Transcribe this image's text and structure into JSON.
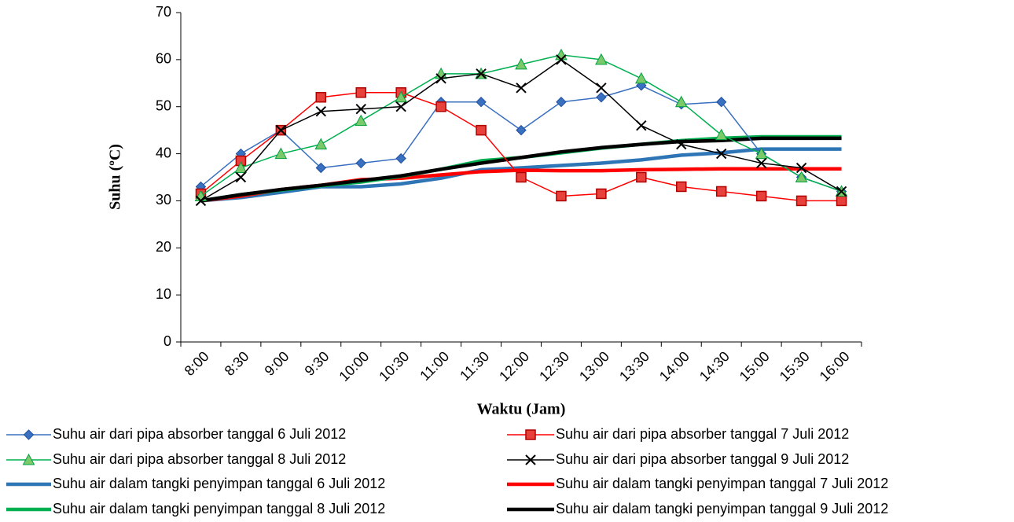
{
  "chart_data": {
    "type": "line",
    "x_label": "Waktu (Jam)",
    "y_label": "Suhu (ºC)",
    "categories": [
      "8:00",
      "8:30",
      "9:00",
      "9:30",
      "10:00",
      "10:30",
      "11:00",
      "11:30",
      "12:00",
      "12:30",
      "13:00",
      "13:30",
      "14:00",
      "14:30",
      "15:00",
      "15:30",
      "16:00"
    ],
    "ylim": [
      0,
      70
    ],
    "yticks": [
      0,
      10,
      20,
      30,
      40,
      50,
      60,
      70
    ],
    "series": [
      {
        "name": "Suhu air dari pipa absorber tanggal 6 Juli 2012",
        "color": "#3a70c0",
        "marker": "diamond",
        "width": 1.5,
        "values": [
          33,
          40,
          45,
          37,
          38,
          39,
          51,
          51,
          45,
          51,
          52,
          54.5,
          50.5,
          51,
          40,
          35,
          32
        ]
      },
      {
        "name": "Suhu air dari pipa absorber tanggal 7 Juli 2012",
        "color": "#ff0000",
        "marker": "square",
        "width": 1.5,
        "values": [
          31.5,
          38.5,
          45,
          52,
          53,
          53,
          50,
          45,
          35,
          31,
          31.5,
          35,
          33,
          32,
          31,
          30,
          30
        ]
      },
      {
        "name": "Suhu air dari pipa absorber tanggal 8 Juli 2012",
        "color": "#00b050",
        "marker": "triangle",
        "width": 1.5,
        "values": [
          31,
          37,
          40,
          42,
          47,
          52,
          57,
          57,
          59,
          61,
          60,
          56,
          51,
          44,
          40,
          35,
          32
        ]
      },
      {
        "name": "Suhu air dari pipa absorber tanggal 9 Juli 2012",
        "color": "#000000",
        "marker": "x",
        "width": 1.5,
        "values": [
          30,
          35,
          45,
          49,
          49.5,
          50,
          56,
          57,
          54,
          60,
          54,
          46,
          42,
          40,
          38,
          37,
          32
        ]
      },
      {
        "name": "Suhu air dalam tangki penyimpan tanggal 6 Juli 2012",
        "color": "#2e75b6",
        "marker": "none",
        "width": 4.5,
        "values": [
          30,
          30.7,
          31.8,
          33,
          33,
          33.6,
          34.8,
          36.6,
          37,
          37.5,
          38,
          38.7,
          39.7,
          40.2,
          41,
          41,
          41
        ]
      },
      {
        "name": "Suhu air dalam tangki penyimpan tanggal 7 Juli 2012",
        "color": "#ff0000",
        "marker": "none",
        "width": 4.5,
        "values": [
          30,
          31,
          32.4,
          33.3,
          34.5,
          34.8,
          35.5,
          36.2,
          36.5,
          36.4,
          36.4,
          36.6,
          36.7,
          36.8,
          36.8,
          36.8,
          36.8
        ]
      },
      {
        "name": "Suhu air dalam tangki penyimpan tanggal 8 Juli 2012",
        "color": "#00b050",
        "marker": "none",
        "width": 4.5,
        "values": [
          30,
          31.3,
          32.3,
          33.2,
          34,
          35.2,
          36.7,
          38.5,
          39.2,
          40.2,
          41.2,
          42,
          42.8,
          43.3,
          43.6,
          43.6,
          43.6
        ]
      },
      {
        "name": "Suhu air dalam tangki penyimpan tanggal 9 Juli 2012",
        "color": "#000000",
        "marker": "none",
        "width": 4.5,
        "values": [
          30,
          31.3,
          32.4,
          33.3,
          34.3,
          35.3,
          36.7,
          38,
          39.2,
          40.4,
          41.3,
          42,
          42.6,
          42.8,
          43.3,
          43.3,
          43.3
        ]
      }
    ]
  }
}
